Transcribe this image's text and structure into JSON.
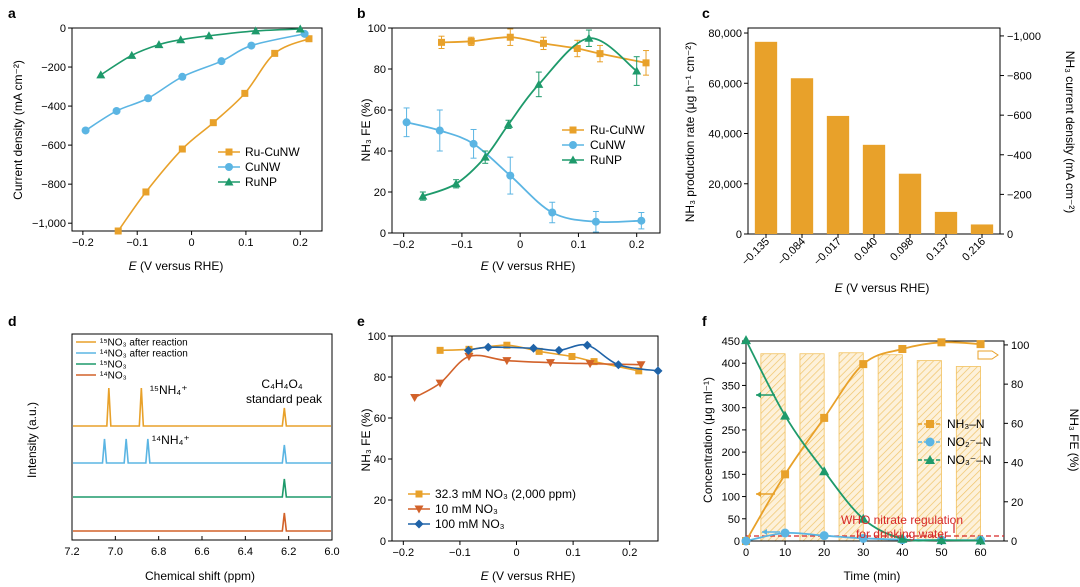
{
  "colors": {
    "orange": "#E8A12A",
    "blue": "#5BB5E3",
    "green": "#1E9A6B",
    "red_orange": "#D2622A",
    "dark_blue": "#1F63A8",
    "gold_bar": "#E8A12A",
    "who_red": "#D62728"
  },
  "panels": {
    "a": {
      "label": "a",
      "chart_data": {
        "type": "line",
        "xlabel_main": "E",
        "xlabel_rest": " (V versus RHE)",
        "ylabel": "Current density (mA cm⁻²)",
        "xlim": [
          -0.22,
          0.24
        ],
        "ylim": [
          -1040,
          0
        ],
        "xticks": [
          -0.2,
          -0.1,
          0.0,
          0.1,
          0.2
        ],
        "xtick_labels": [
          "−0.2",
          "−0.1",
          "0",
          "0.1",
          "0.2"
        ],
        "yticks": [
          0,
          -200,
          -400,
          -600,
          -800,
          -1000
        ],
        "ytick_labels": [
          "0",
          "−200",
          "−400",
          "−600",
          "−800",
          "−1,000"
        ],
        "series": [
          {
            "name": "Ru-CuNW",
            "color": "orange",
            "marker": "square",
            "x": [
              -0.135,
              -0.084,
              -0.017,
              0.04,
              0.098,
              0.153,
              0.216
            ],
            "y": [
              -1040,
              -840,
              -620,
              -485,
              -335,
              -130,
              -55
            ]
          },
          {
            "name": "CuNW",
            "color": "blue",
            "marker": "circle",
            "x": [
              -0.195,
              -0.138,
              -0.08,
              -0.017,
              0.055,
              0.11,
              0.208
            ],
            "y": [
              -525,
              -425,
              -360,
              -250,
              -170,
              -90,
              -30
            ]
          },
          {
            "name": "RuNP",
            "color": "green",
            "marker": "triangle",
            "x": [
              -0.167,
              -0.11,
              -0.06,
              -0.02,
              0.032,
              0.118,
              0.2
            ],
            "y": [
              -240,
              -140,
              -85,
              -60,
              -40,
              -15,
              -5
            ]
          }
        ]
      }
    },
    "b": {
      "label": "b",
      "chart_data": {
        "type": "scatter",
        "xlabel_main": "E",
        "xlabel_rest": " (V versus RHE)",
        "ylabel": "NH₃ FE (%)",
        "xlim": [
          -0.22,
          0.24
        ],
        "ylim": [
          0,
          100
        ],
        "xticks": [
          -0.2,
          -0.1,
          0.0,
          0.1,
          0.2
        ],
        "xtick_labels": [
          "−0.2",
          "−0.1",
          "0",
          "0.1",
          "0.2"
        ],
        "yticks": [
          0,
          20,
          40,
          60,
          80,
          100
        ],
        "ytick_labels": [
          "0",
          "20",
          "40",
          "60",
          "80",
          "100"
        ],
        "series": [
          {
            "name": "Ru-CuNW",
            "color": "orange",
            "marker": "square",
            "x": [
              -0.135,
              -0.084,
              -0.017,
              0.04,
              0.098,
              0.137,
              0.216
            ],
            "y": [
              93,
              93.5,
              95.5,
              92.5,
              90,
              87.5,
              83
            ],
            "err": [
              3,
              2,
              4,
              3,
              4,
              4,
              6
            ]
          },
          {
            "name": "CuNW",
            "color": "blue",
            "marker": "circle",
            "x": [
              -0.195,
              -0.138,
              -0.08,
              -0.017,
              0.055,
              0.13,
              0.208
            ],
            "y": [
              54,
              50,
              43.5,
              28,
              10,
              5.5,
              6
            ],
            "err": [
              7,
              10,
              7,
              9,
              5,
              5,
              4
            ]
          },
          {
            "name": "RuNP",
            "color": "green",
            "marker": "triangle",
            "x": [
              -0.167,
              -0.11,
              -0.06,
              -0.02,
              0.032,
              0.118,
              0.2
            ],
            "y": [
              18,
              24,
              37,
              53,
              72.5,
              95,
              79
            ],
            "err": [
              2,
              2,
              3,
              2,
              6,
              4,
              7
            ]
          }
        ]
      }
    },
    "c": {
      "label": "c",
      "chart_data": {
        "type": "bar",
        "xlabel_main": "E",
        "xlabel_rest": " (V versus RHE)",
        "ylabel": "NH₃ production rate (μg h⁻¹ cm⁻²)",
        "ylabel_right": "NH₃ current density (mA cm⁻²)",
        "categories": [
          "−0.135",
          "−0.084",
          "−0.017",
          "0.040",
          "0.098",
          "0.137",
          "0.216"
        ],
        "values": [
          76500,
          62000,
          47000,
          35500,
          24000,
          8800,
          3800
        ],
        "ylim": [
          0,
          82000
        ],
        "yticks": [
          0,
          20000,
          40000,
          60000,
          80000
        ],
        "ytick_labels": [
          "0",
          "20,000",
          "40,000",
          "60,000",
          "80,000"
        ],
        "yticks_right": [
          0,
          -200,
          -400,
          -600,
          -800,
          -1000
        ],
        "ytick_labels_right": [
          "0",
          "−200",
          "−400",
          "−600",
          "−800",
          "−1,000"
        ]
      }
    },
    "d": {
      "label": "d",
      "chart_data": {
        "type": "line",
        "xlabel": "Chemical shift (ppm)",
        "ylabel": "Intensity (a.u.)",
        "xlim": [
          7.2,
          6.0
        ],
        "xticks": [
          7.2,
          7.0,
          6.8,
          6.6,
          6.4,
          6.2,
          6.0
        ],
        "xtick_labels": [
          "7.2",
          "7.0",
          "6.8",
          "6.6",
          "6.4",
          "6.2",
          "6.0"
        ],
        "series": [
          {
            "name": "¹⁵NO₃ after reaction",
            "color": "orange",
            "peaks": [
              7.03,
              6.88,
              6.22
            ]
          },
          {
            "name": "¹⁴NO₃ after reaction",
            "color": "blue",
            "peaks": [
              7.05,
              6.95,
              6.85,
              6.22
            ]
          },
          {
            "name": "¹⁵NO₃",
            "color": "green",
            "peaks": [
              6.22
            ]
          },
          {
            "name": "¹⁴NO₃",
            "color": "red_orange",
            "peaks": [
              6.22
            ]
          }
        ],
        "annotations": {
          "n15": "¹⁵NH₄⁺",
          "n14": "¹⁴NH₄⁺",
          "c4h4o4_line1": "C₄H₄O₄",
          "c4h4o4_line2": "standard peak"
        }
      }
    },
    "e": {
      "label": "e",
      "chart_data": {
        "type": "line",
        "xlabel_main": "E",
        "xlabel_rest": " (V versus RHE)",
        "ylabel": "NH₃ FE (%)",
        "xlim": [
          -0.22,
          0.25
        ],
        "ylim": [
          0,
          100
        ],
        "xticks": [
          -0.2,
          -0.1,
          0.0,
          0.1,
          0.2
        ],
        "xtick_labels": [
          "−0.2",
          "−0.1",
          "0",
          "0.1",
          "0.2"
        ],
        "yticks": [
          0,
          20,
          40,
          60,
          80,
          100
        ],
        "ytick_labels": [
          "0",
          "20",
          "40",
          "60",
          "80",
          "100"
        ],
        "series": [
          {
            "name": "32.3 mM NO₃ (2,000 ppm)",
            "color": "orange",
            "marker": "square",
            "x": [
              -0.135,
              -0.084,
              -0.017,
              0.04,
              0.098,
              0.137,
              0.216
            ],
            "y": [
              93,
              93.5,
              95.5,
              92.5,
              90,
              87.5,
              83
            ]
          },
          {
            "name": "10 mM NO₃",
            "color": "red_orange",
            "marker": "triangle-down",
            "x": [
              -0.18,
              -0.135,
              -0.084,
              -0.017,
              0.06,
              0.13,
              0.22
            ],
            "y": [
              70,
              77,
              90,
              88,
              87,
              86.5,
              86
            ]
          },
          {
            "name": "100 mM NO₃",
            "color": "dark_blue",
            "marker": "diamond",
            "x": [
              -0.085,
              -0.05,
              0.03,
              0.075,
              0.125,
              0.18,
              0.25
            ],
            "y": [
              93,
              94.5,
              94,
              93,
              95.5,
              86,
              83
            ]
          }
        ]
      }
    },
    "f": {
      "label": "f",
      "chart_data": {
        "type": "line",
        "xlabel": "Time (min)",
        "ylabel": "Concentration (μg ml⁻¹)",
        "ylabel_right": "NH₃ FE (%)",
        "xlim": [
          0,
          66
        ],
        "ylim": [
          0,
          450
        ],
        "xticks": [
          0,
          10,
          20,
          30,
          40,
          50,
          60
        ],
        "xtick_labels": [
          "0",
          "10",
          "20",
          "30",
          "40",
          "50",
          "60"
        ],
        "yticks": [
          0,
          50,
          100,
          150,
          200,
          250,
          300,
          350,
          400,
          450
        ],
        "ytick_labels": [
          "0",
          "50",
          "100",
          "150",
          "200",
          "250",
          "300",
          "350",
          "400",
          "450"
        ],
        "yticks_right": [
          0,
          20,
          40,
          60,
          80,
          100
        ],
        "ytick_labels_right": [
          "0",
          "20",
          "40",
          "60",
          "80",
          "100"
        ],
        "series": [
          {
            "name": "NH₃–N",
            "color": "orange",
            "marker": "square",
            "x": [
              0,
              10,
              20,
              30,
              40,
              50,
              60
            ],
            "y": [
              0,
              150,
              277,
              398,
              432,
              447,
              443
            ]
          },
          {
            "name": "NO₂⁻–N",
            "color": "blue",
            "marker": "circle",
            "x": [
              0,
              10,
              20,
              30,
              40,
              50,
              60
            ],
            "y": [
              0,
              18,
              12,
              6,
              3,
              2,
              2
            ]
          },
          {
            "name": "NO₃⁻–N",
            "color": "green",
            "marker": "triangle",
            "x": [
              0,
              10,
              20,
              30,
              40,
              50,
              60
            ],
            "y": [
              452,
              282,
              157,
              50,
              5,
              2,
              1
            ]
          }
        ],
        "fe_bars": {
          "x": [
            10,
            20,
            30,
            40,
            50,
            60
          ],
          "fe": [
            95.5,
            95.5,
            96,
            95,
            92,
            89
          ]
        },
        "who_line_y": 11.3,
        "who_label_line1": "WHO nitrate regulation",
        "who_label_line2": "for drinking water"
      }
    }
  }
}
